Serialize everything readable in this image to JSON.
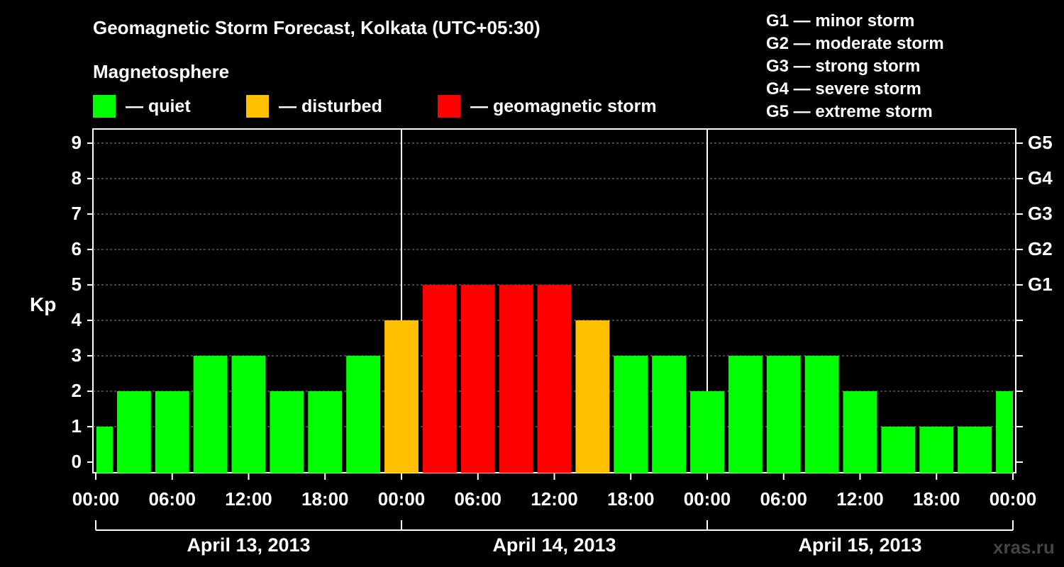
{
  "title": "Geomagnetic Storm Forecast, Kolkata (UTC+05:30)",
  "magnetosphere": {
    "heading": "Magnetosphere",
    "legend": [
      {
        "label": "— quiet",
        "color": "#00ff00"
      },
      {
        "label": "— disturbed",
        "color": "#ffc000"
      },
      {
        "label": "— geomagnetic storm",
        "color": "#ff0000"
      }
    ]
  },
  "g_scale": [
    "G1 — minor storm",
    "G2 — moderate storm",
    "G3 — strong storm",
    "G4 — severe storm",
    "G5 — extreme storm"
  ],
  "watermark": "xras.ru",
  "chart_data": {
    "type": "bar",
    "ylabel": "Kp",
    "ylim": [
      0,
      9
    ],
    "yticks": [
      0,
      1,
      2,
      3,
      4,
      5,
      6,
      7,
      8,
      9
    ],
    "right_ticks": [
      {
        "label": "G1",
        "kp": 5
      },
      {
        "label": "G2",
        "kp": 6
      },
      {
        "label": "G3",
        "kp": 7
      },
      {
        "label": "G4",
        "kp": 8
      },
      {
        "label": "G5",
        "kp": 9
      }
    ],
    "x_tick_labels": [
      "00:00",
      "06:00",
      "12:00",
      "18:00",
      "00:00",
      "06:00",
      "12:00",
      "18:00",
      "00:00",
      "06:00",
      "12:00",
      "18:00",
      "00:00"
    ],
    "days": [
      "April 13, 2013",
      "April 14, 2013",
      "April 15, 2013"
    ],
    "grid": "horizontal dashed",
    "colors": {
      "quiet": "#00ff00",
      "disturbed": "#ffc000",
      "storm": "#ff0000"
    },
    "bar_hours": 3,
    "values": [
      1,
      2,
      2,
      3,
      3,
      2,
      2,
      3,
      4,
      5,
      5,
      5,
      5,
      4,
      3,
      3,
      2,
      3,
      3,
      3,
      2,
      1,
      1,
      1,
      2
    ]
  }
}
